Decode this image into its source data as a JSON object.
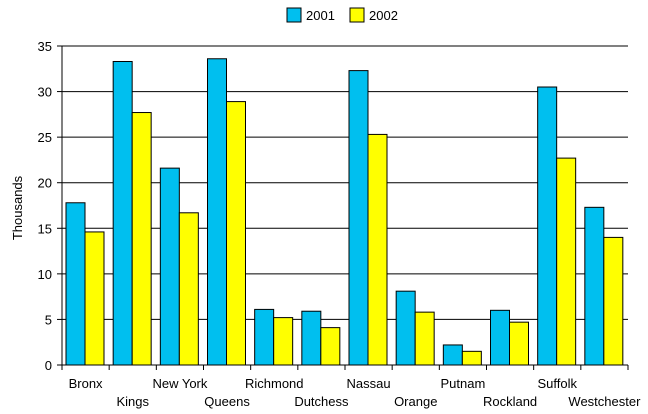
{
  "chart_data": {
    "type": "bar",
    "categories": [
      "Bronx",
      "Kings",
      "New York",
      "Queens",
      "Richmond",
      "Dutchess",
      "Nassau",
      "Orange",
      "Putnam",
      "Rockland",
      "Suffolk",
      "Westchester"
    ],
    "series": [
      {
        "name": "2001",
        "color": "#00bfef",
        "values": [
          17.8,
          33.3,
          21.6,
          33.6,
          6.1,
          5.9,
          32.3,
          8.1,
          2.2,
          6.0,
          30.5,
          17.3
        ]
      },
      {
        "name": "2002",
        "color": "#ffff00",
        "values": [
          14.6,
          27.7,
          16.7,
          28.9,
          5.2,
          4.1,
          25.3,
          5.8,
          1.5,
          4.7,
          22.7,
          14.0
        ]
      }
    ],
    "title": "",
    "xlabel": "",
    "ylabel": "Thousands",
    "ylim": [
      0,
      35
    ],
    "yticks": [
      0,
      5,
      10,
      15,
      20,
      25,
      30,
      35
    ],
    "grid": true,
    "legend_position": "top"
  }
}
